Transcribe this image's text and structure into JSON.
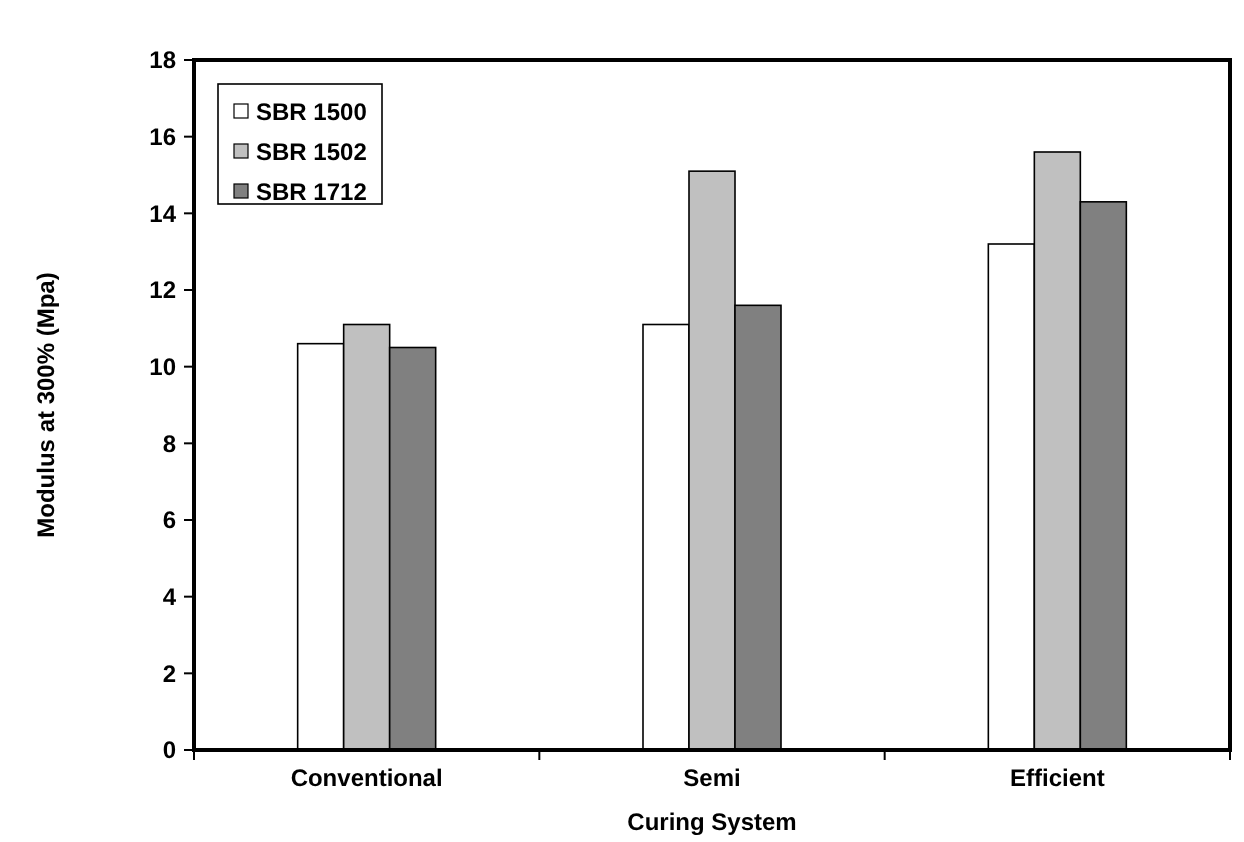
{
  "chart_data": {
    "type": "bar",
    "xlabel": "Curing System",
    "ylabel": "Modulus at 300% (Mpa)",
    "categories": [
      "Conventional",
      "Semi",
      "Efficient"
    ],
    "series": [
      {
        "name": "SBR 1500",
        "color": "#ffffff",
        "values": [
          10.6,
          11.1,
          13.2
        ]
      },
      {
        "name": "SBR 1502",
        "color": "#c0c0c0",
        "values": [
          11.1,
          15.1,
          15.6
        ]
      },
      {
        "name": "SBR 1712",
        "color": "#808080",
        "values": [
          10.5,
          11.6,
          14.3
        ]
      }
    ],
    "ylim": [
      0,
      18
    ],
    "yticks": [
      0,
      2,
      4,
      6,
      8,
      10,
      12,
      14,
      16,
      18
    ],
    "grid": false,
    "legend": "top left"
  }
}
